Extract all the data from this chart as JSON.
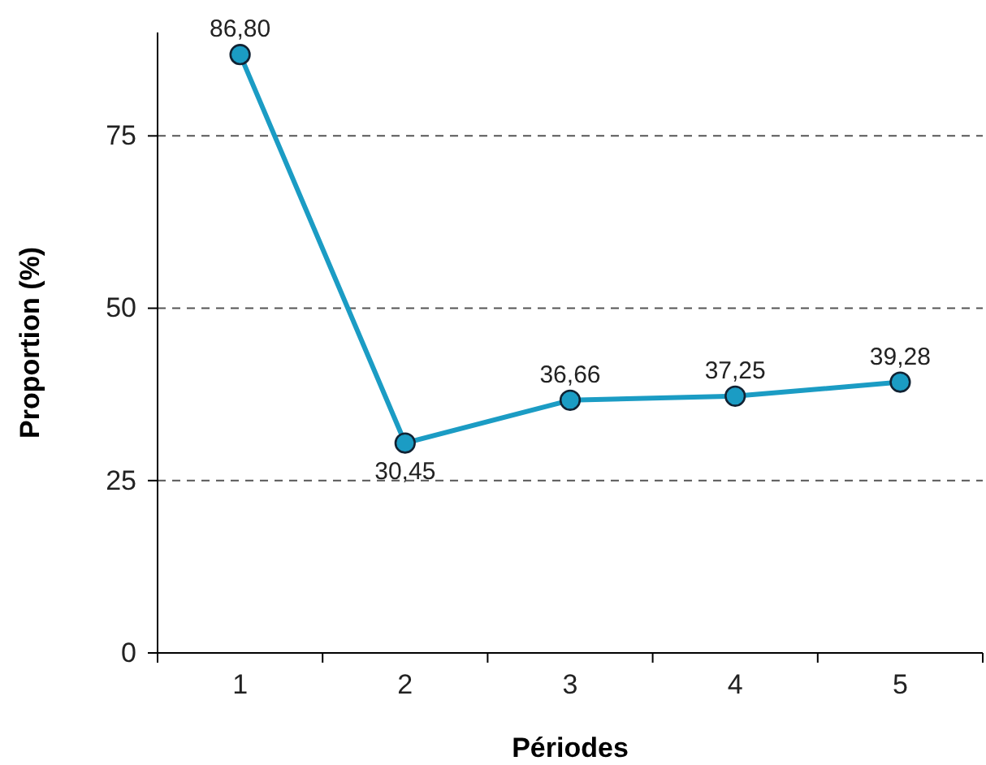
{
  "chart_data": {
    "type": "line",
    "xlabel": "Périodes",
    "ylabel": "Proportion (%)",
    "categories": [
      "1",
      "2",
      "3",
      "4",
      "5"
    ],
    "series": [
      {
        "color": "#1b9cc4",
        "values": [
          86.8,
          30.45,
          36.66,
          37.25,
          39.28
        ],
        "value_labels": [
          "86,80",
          "30,45",
          "36,66",
          "37,25",
          "39,28"
        ]
      }
    ],
    "ylim": [
      0,
      90
    ],
    "yticks": [
      0,
      25,
      50,
      75
    ],
    "grid": "y",
    "marker": "circle",
    "line_style": "solid"
  }
}
